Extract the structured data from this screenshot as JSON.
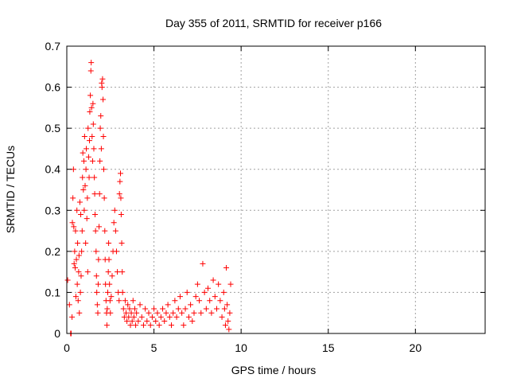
{
  "chart_data": {
    "type": "scatter",
    "title": "Day 355 of 2011, SRMTID for receiver p166",
    "xlabel": "GPS time / hours",
    "ylabel": "SRMTID / TECUs",
    "xlim": [
      0,
      24
    ],
    "ylim": [
      0,
      0.7
    ],
    "x_ticks": [
      0,
      5,
      10,
      15,
      20
    ],
    "x_tick_labels": [
      "0",
      "5",
      "10",
      "15",
      "20"
    ],
    "y_ticks": [
      0,
      0.1,
      0.2,
      0.3,
      0.4,
      0.5,
      0.6,
      0.7
    ],
    "y_tick_labels": [
      "0",
      "0.1",
      "0.2",
      "0.3",
      "0.4",
      "0.5",
      "0.6",
      "0.7"
    ],
    "grid": true,
    "legend": "none",
    "marker": "+",
    "marker_color": "#ff0000",
    "series": [
      {
        "points": [
          [
            0.05,
            0.13
          ],
          [
            0.15,
            0.07
          ],
          [
            0.22,
            0.0
          ],
          [
            0.25,
            0.0
          ],
          [
            0.3,
            0.04
          ],
          [
            0.32,
            0.27
          ],
          [
            0.35,
            0.33
          ],
          [
            0.38,
            0.4
          ],
          [
            0.4,
            0.26
          ],
          [
            0.42,
            0.17
          ],
          [
            0.45,
            0.2
          ],
          [
            0.48,
            0.16
          ],
          [
            0.5,
            0.25
          ],
          [
            0.52,
            0.09
          ],
          [
            0.55,
            0.18
          ],
          [
            0.58,
            0.3
          ],
          [
            0.6,
            0.12
          ],
          [
            0.62,
            0.22
          ],
          [
            0.65,
            0.08
          ],
          [
            0.68,
            0.15
          ],
          [
            0.7,
            0.19
          ],
          [
            0.72,
            0.05
          ],
          [
            0.75,
            0.32
          ],
          [
            0.78,
            0.1
          ],
          [
            0.8,
            0.29
          ],
          [
            0.82,
            0.14
          ],
          [
            0.85,
            0.2
          ],
          [
            0.88,
            0.25
          ],
          [
            0.9,
            0.38
          ],
          [
            0.92,
            0.44
          ],
          [
            0.95,
            0.35
          ],
          [
            0.98,
            0.42
          ],
          [
            1.0,
            0.3
          ],
          [
            1.02,
            0.48
          ],
          [
            1.05,
            0.36
          ],
          [
            1.08,
            0.22
          ],
          [
            1.1,
            0.4
          ],
          [
            1.12,
            0.45
          ],
          [
            1.15,
            0.28
          ],
          [
            1.18,
            0.33
          ],
          [
            1.2,
            0.15
          ],
          [
            1.22,
            0.5
          ],
          [
            1.25,
            0.43
          ],
          [
            1.28,
            0.38
          ],
          [
            1.3,
            0.47
          ],
          [
            1.32,
            0.54
          ],
          [
            1.35,
            0.58
          ],
          [
            1.38,
            0.64
          ],
          [
            1.4,
            0.66
          ],
          [
            1.42,
            0.55
          ],
          [
            1.45,
            0.48
          ],
          [
            1.48,
            0.42
          ],
          [
            1.5,
            0.56
          ],
          [
            1.52,
            0.51
          ],
          [
            1.55,
            0.45
          ],
          [
            1.58,
            0.38
          ],
          [
            1.6,
            0.34
          ],
          [
            1.62,
            0.29
          ],
          [
            1.65,
            0.25
          ],
          [
            1.68,
            0.2
          ],
          [
            1.7,
            0.14
          ],
          [
            1.72,
            0.1
          ],
          [
            1.75,
            0.07
          ],
          [
            1.78,
            0.05
          ],
          [
            1.8,
            0.12
          ],
          [
            1.82,
            0.18
          ],
          [
            1.85,
            0.26
          ],
          [
            1.88,
            0.34
          ],
          [
            1.9,
            0.42
          ],
          [
            1.92,
            0.5
          ],
          [
            1.95,
            0.53
          ],
          [
            1.98,
            0.45
          ],
          [
            2.0,
            0.61
          ],
          [
            2.02,
            0.6
          ],
          [
            2.05,
            0.62
          ],
          [
            2.08,
            0.57
          ],
          [
            2.1,
            0.48
          ],
          [
            2.12,
            0.4
          ],
          [
            2.15,
            0.33
          ],
          [
            2.18,
            0.25
          ],
          [
            2.2,
            0.18
          ],
          [
            2.22,
            0.12
          ],
          [
            2.25,
            0.08
          ],
          [
            2.28,
            0.05
          ],
          [
            2.3,
            0.02
          ],
          [
            2.32,
            0.06
          ],
          [
            2.35,
            0.1
          ],
          [
            2.38,
            0.15
          ],
          [
            2.4,
            0.22
          ],
          [
            2.42,
            0.18
          ],
          [
            2.45,
            0.12
          ],
          [
            2.48,
            0.08
          ],
          [
            2.5,
            0.05
          ],
          [
            2.55,
            0.09
          ],
          [
            2.6,
            0.14
          ],
          [
            2.65,
            0.2
          ],
          [
            2.7,
            0.27
          ],
          [
            2.75,
            0.3
          ],
          [
            2.8,
            0.25
          ],
          [
            2.85,
            0.2
          ],
          [
            2.9,
            0.15
          ],
          [
            2.95,
            0.1
          ],
          [
            3.0,
            0.08
          ],
          [
            3.02,
            0.34
          ],
          [
            3.05,
            0.37
          ],
          [
            3.08,
            0.39
          ],
          [
            3.1,
            0.33
          ],
          [
            3.12,
            0.29
          ],
          [
            3.15,
            0.22
          ],
          [
            3.18,
            0.15
          ],
          [
            3.2,
            0.1
          ],
          [
            3.25,
            0.06
          ],
          [
            3.3,
            0.04
          ],
          [
            3.35,
            0.08
          ],
          [
            3.4,
            0.05
          ],
          [
            3.45,
            0.03
          ],
          [
            3.5,
            0.07
          ],
          [
            3.55,
            0.04
          ],
          [
            3.6,
            0.06
          ],
          [
            3.65,
            0.02
          ],
          [
            3.7,
            0.05
          ],
          [
            3.75,
            0.03
          ],
          [
            3.8,
            0.08
          ],
          [
            3.85,
            0.04
          ],
          [
            3.9,
            0.06
          ],
          [
            3.95,
            0.02
          ],
          [
            4.0,
            0.05
          ],
          [
            4.1,
            0.03
          ],
          [
            4.2,
            0.07
          ],
          [
            4.3,
            0.04
          ],
          [
            4.4,
            0.02
          ],
          [
            4.5,
            0.06
          ],
          [
            4.6,
            0.03
          ],
          [
            4.7,
            0.05
          ],
          [
            4.8,
            0.02
          ],
          [
            4.9,
            0.04
          ],
          [
            5.0,
            0.06
          ],
          [
            5.1,
            0.03
          ],
          [
            5.2,
            0.05
          ],
          [
            5.3,
            0.02
          ],
          [
            5.4,
            0.04
          ],
          [
            5.5,
            0.06
          ],
          [
            5.6,
            0.03
          ],
          [
            5.7,
            0.05
          ],
          [
            5.8,
            0.07
          ],
          [
            5.9,
            0.04
          ],
          [
            6.0,
            0.02
          ],
          [
            6.1,
            0.05
          ],
          [
            6.2,
            0.08
          ],
          [
            6.3,
            0.04
          ],
          [
            6.4,
            0.06
          ],
          [
            6.5,
            0.09
          ],
          [
            6.6,
            0.05
          ],
          [
            6.7,
            0.02
          ],
          [
            6.8,
            0.06
          ],
          [
            6.9,
            0.1
          ],
          [
            7.0,
            0.04
          ],
          [
            7.1,
            0.07
          ],
          [
            7.2,
            0.03
          ],
          [
            7.3,
            0.05
          ],
          [
            7.4,
            0.09
          ],
          [
            7.5,
            0.12
          ],
          [
            7.6,
            0.08
          ],
          [
            7.7,
            0.05
          ],
          [
            7.8,
            0.17
          ],
          [
            7.9,
            0.1
          ],
          [
            8.0,
            0.06
          ],
          [
            8.1,
            0.11
          ],
          [
            8.2,
            0.08
          ],
          [
            8.3,
            0.05
          ],
          [
            8.4,
            0.13
          ],
          [
            8.5,
            0.09
          ],
          [
            8.6,
            0.06
          ],
          [
            8.7,
            0.12
          ],
          [
            8.8,
            0.08
          ],
          [
            8.9,
            0.04
          ],
          [
            9.0,
            0.1
          ],
          [
            9.05,
            0.06
          ],
          [
            9.1,
            0.02
          ],
          [
            9.15,
            0.16
          ],
          [
            9.2,
            0.07
          ],
          [
            9.25,
            0.03
          ],
          [
            9.3,
            0.01
          ],
          [
            9.35,
            0.05
          ],
          [
            9.4,
            0.12
          ]
        ]
      }
    ]
  }
}
